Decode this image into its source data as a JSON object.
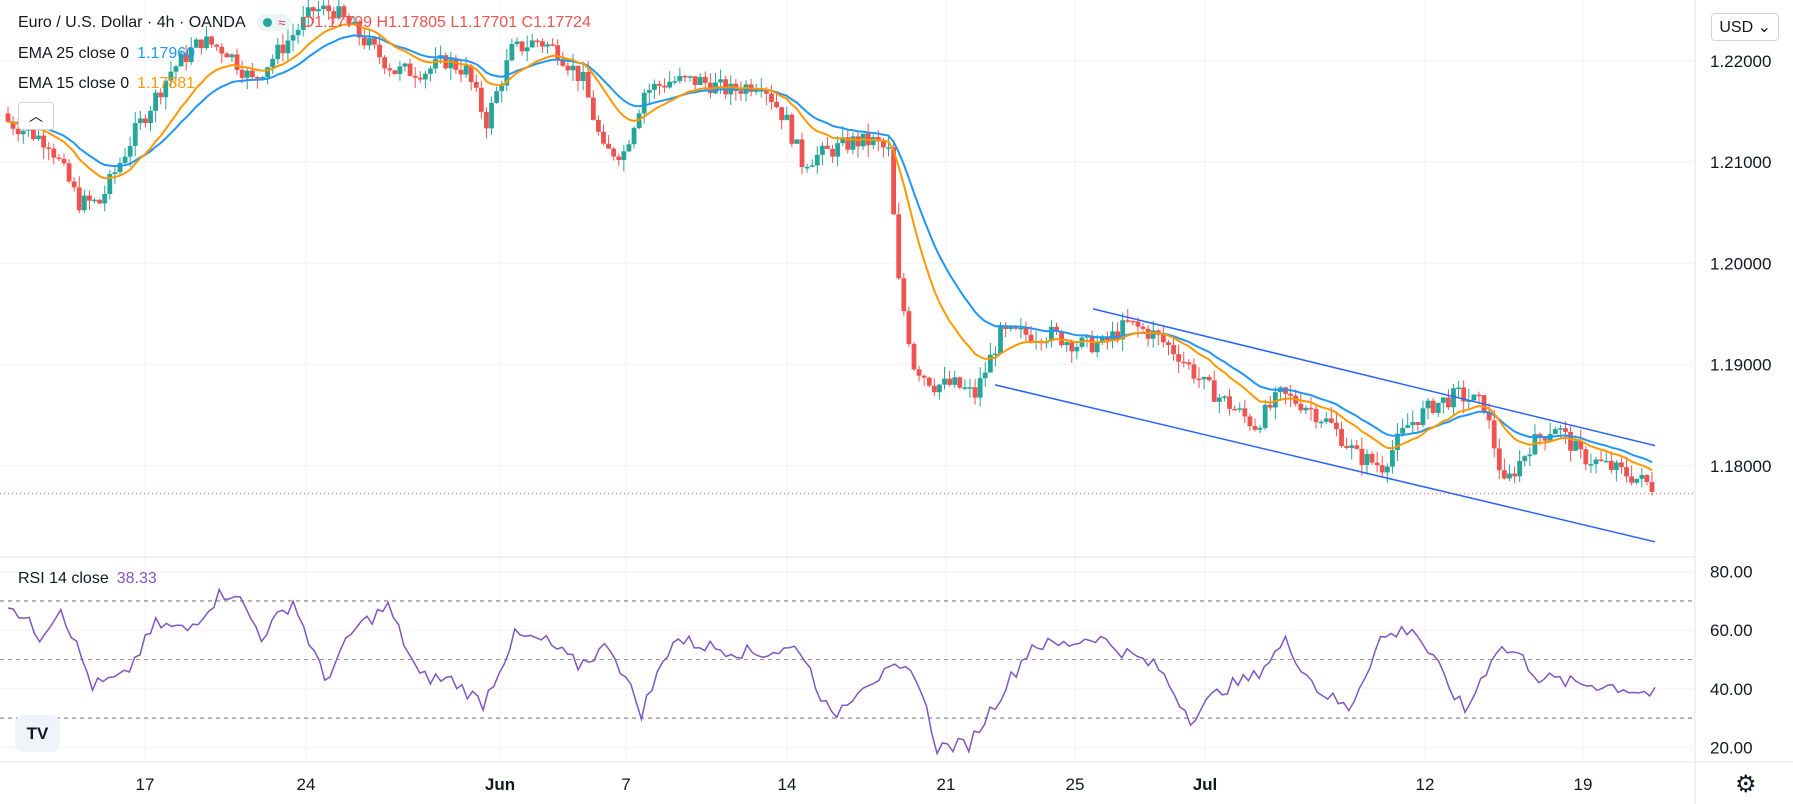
{
  "symbol": {
    "title": "Euro / U.S. Dollar · 4h · OANDA",
    "open": "O1.17799",
    "high": "H1.17805",
    "low": "L1.17701",
    "close": "C1.17724"
  },
  "indicators": {
    "ema25": {
      "label": "EMA 25 close 0",
      "value": "1.17960",
      "color": "#2196f3"
    },
    "ema15": {
      "label": "EMA 15 close 0",
      "value": "1.17881",
      "color": "#ff9800"
    },
    "rsi": {
      "label": "RSI 14 close",
      "value": "38.33",
      "color": "#7e57c2"
    }
  },
  "currency_button": "USD",
  "logo_text": "TV",
  "colors": {
    "up": "#26a69a",
    "down": "#ef5350",
    "channel": "#2962ff"
  },
  "chart_data": [
    {
      "type": "candlestick",
      "title": "Euro / U.S. Dollar, 4h, OANDA",
      "x_tick_labels": [
        "17",
        "24",
        "Jun",
        "7",
        "14",
        "21",
        "25",
        "Jul",
        "12",
        "19"
      ],
      "y_tick_labels": [
        "1.18000",
        "1.19000",
        "1.20000",
        "1.21000",
        "1.22000"
      ],
      "ylim": [
        1.171,
        1.226
      ],
      "last_price": 1.17724,
      "candle_count": 215,
      "anchors": [
        [
          0,
          1.214
        ],
        [
          8,
          1.212
        ],
        [
          14,
          1.206
        ],
        [
          18,
          1.206
        ],
        [
          25,
          1.213
        ],
        [
          32,
          1.219
        ],
        [
          38,
          1.222
        ],
        [
          43,
          1.221
        ],
        [
          48,
          1.218
        ],
        [
          55,
          1.222
        ],
        [
          60,
          1.225
        ],
        [
          64,
          1.225
        ],
        [
          70,
          1.222
        ],
        [
          76,
          1.219
        ],
        [
          82,
          1.219
        ],
        [
          86,
          1.22
        ],
        [
          90,
          1.219
        ],
        [
          94,
          1.214
        ],
        [
          99,
          1.221
        ],
        [
          104,
          1.222
        ],
        [
          108,
          1.221
        ],
        [
          113,
          1.218
        ],
        [
          117,
          1.211
        ],
        [
          121,
          1.211
        ],
        [
          125,
          1.217
        ],
        [
          130,
          1.218
        ],
        [
          136,
          1.218
        ],
        [
          142,
          1.217
        ],
        [
          148,
          1.218
        ],
        [
          153,
          1.214
        ],
        [
          156,
          1.21
        ],
        [
          161,
          1.211
        ],
        [
          166,
          1.212
        ],
        [
          170,
          1.212
        ],
        [
          173,
          1.211
        ],
        [
          175,
          1.198
        ],
        [
          178,
          1.19
        ],
        [
          182,
          1.188
        ],
        [
          186,
          1.188
        ],
        [
          190,
          1.187
        ],
        [
          195,
          1.193
        ],
        [
          200,
          1.193
        ],
        [
          205,
          1.193
        ],
        [
          210,
          1.192
        ],
        [
          215,
          1.192
        ]
      ],
      "second_segment_anchors_note": "x beyond 215 continue in series_b",
      "series_b_anchors": [
        [
          0,
          1.192
        ],
        [
          5,
          1.194
        ],
        [
          10,
          1.193
        ],
        [
          15,
          1.191
        ],
        [
          20,
          1.188
        ],
        [
          25,
          1.186
        ],
        [
          30,
          1.184
        ],
        [
          35,
          1.187
        ],
        [
          40,
          1.186
        ],
        [
          45,
          1.184
        ],
        [
          50,
          1.181
        ],
        [
          55,
          1.18
        ],
        [
          60,
          1.184
        ],
        [
          65,
          1.186
        ],
        [
          70,
          1.187
        ],
        [
          75,
          1.186
        ],
        [
          79,
          1.178
        ],
        [
          84,
          1.182
        ],
        [
          89,
          1.184
        ],
        [
          94,
          1.181
        ],
        [
          99,
          1.18
        ],
        [
          104,
          1.179
        ],
        [
          108,
          1.178
        ]
      ],
      "ema15_label": "EMA 15",
      "ema25_label": "EMA 25",
      "channel_upper": [
        [
          1.1955,
          "Jun 25"
        ],
        [
          1.182,
          "Jul 21"
        ]
      ],
      "channel_lower": [
        [
          1.188,
          "Jun 22"
        ],
        [
          1.1725,
          "Jul 21"
        ]
      ]
    },
    {
      "type": "line",
      "title": "RSI 14 close",
      "y_tick_labels": [
        "20.00",
        "40.00",
        "60.00",
        "80.00"
      ],
      "ylim": [
        15,
        85
      ],
      "bands": [
        30,
        50,
        70
      ],
      "anchors": [
        [
          0,
          70
        ],
        [
          6,
          58
        ],
        [
          10,
          68
        ],
        [
          16,
          41
        ],
        [
          22,
          44
        ],
        [
          28,
          62
        ],
        [
          34,
          60
        ],
        [
          40,
          72
        ],
        [
          43,
          73
        ],
        [
          48,
          58
        ],
        [
          54,
          70
        ],
        [
          60,
          43
        ],
        [
          66,
          61
        ],
        [
          72,
          68
        ],
        [
          78,
          44
        ],
        [
          84,
          43
        ],
        [
          90,
          35
        ],
        [
          96,
          58
        ],
        [
          102,
          56
        ],
        [
          108,
          48
        ],
        [
          114,
          55
        ],
        [
          120,
          32
        ],
        [
          126,
          57
        ],
        [
          134,
          54
        ],
        [
          142,
          52
        ],
        [
          150,
          54
        ],
        [
          156,
          30
        ],
        [
          162,
          42
        ],
        [
          168,
          46
        ],
        [
          172,
          45
        ],
        [
          176,
          20
        ],
        [
          182,
          21
        ],
        [
          188,
          38
        ],
        [
          194,
          55
        ],
        [
          200,
          55
        ],
        [
          206,
          58
        ],
        [
          212,
          52
        ],
        [
          218,
          47
        ],
        [
          224,
          30
        ],
        [
          230,
          40
        ],
        [
          236,
          44
        ],
        [
          242,
          56
        ],
        [
          248,
          40
        ],
        [
          254,
          33
        ],
        [
          260,
          57
        ],
        [
          266,
          61
        ],
        [
          270,
          50
        ],
        [
          276,
          32
        ],
        [
          282,
          54
        ],
        [
          286,
          52
        ],
        [
          290,
          44
        ],
        [
          296,
          42
        ],
        [
          304,
          41
        ],
        [
          312,
          38
        ]
      ]
    }
  ]
}
